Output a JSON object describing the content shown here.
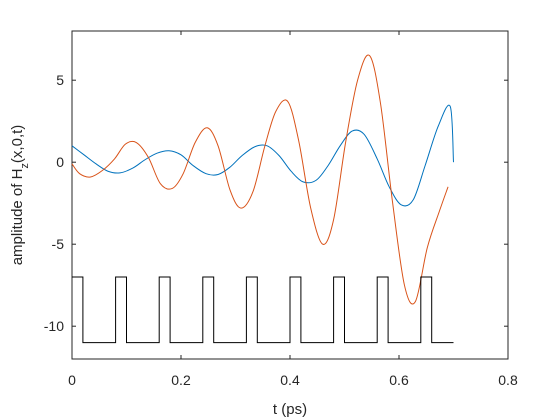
{
  "chart_data": {
    "type": "line",
    "title": "",
    "xlabel": "t (ps)",
    "ylabel": "amplitude of H_z(x,0,t)",
    "xlim": [
      0,
      0.8
    ],
    "ylim": [
      -12,
      8
    ],
    "x_ticks": [
      0,
      0.2,
      0.4,
      0.6,
      0.8
    ],
    "x_tick_labels": [
      "0",
      "0.2",
      "0.4",
      "0.6",
      "0.8"
    ],
    "y_ticks": [
      -10,
      -5,
      0,
      5
    ],
    "y_tick_labels": [
      "-10",
      "-5",
      "0",
      "5"
    ],
    "grid": false,
    "legend": "none",
    "series": [
      {
        "color": "#0072BD",
        "x": [
          0,
          0.022,
          0.044,
          0.066,
          0.088,
          0.112,
          0.134,
          0.156,
          0.178,
          0.2,
          0.222,
          0.246,
          0.268,
          0.29,
          0.312,
          0.336,
          0.358,
          0.38,
          0.402,
          0.424,
          0.448,
          0.47,
          0.492,
          0.514,
          0.536,
          0.56,
          0.582,
          0.604,
          0.626,
          0.648,
          0.672,
          0.694,
          0.7
        ],
        "y": [
          1.0,
          0.45,
          -0.1,
          -0.55,
          -0.65,
          -0.35,
          0.15,
          0.55,
          0.7,
          0.45,
          -0.2,
          -0.7,
          -0.75,
          -0.3,
          0.4,
          0.95,
          1.0,
          0.4,
          -0.55,
          -1.2,
          -1.1,
          -0.2,
          1.0,
          1.9,
          1.7,
          0.2,
          -1.5,
          -2.6,
          -2.3,
          -0.2,
          2.2,
          3.4,
          0.0
        ]
      },
      {
        "color": "#D95319",
        "x": [
          0,
          0.014,
          0.034,
          0.056,
          0.078,
          0.098,
          0.118,
          0.14,
          0.162,
          0.184,
          0.204,
          0.226,
          0.248,
          0.268,
          0.29,
          0.31,
          0.332,
          0.354,
          0.374,
          0.396,
          0.416,
          0.438,
          0.46,
          0.48,
          0.502,
          0.524,
          0.546,
          0.566,
          0.588,
          0.61,
          0.63,
          0.652,
          0.674,
          0.69
        ],
        "y": [
          -0.1,
          -0.7,
          -0.9,
          -0.5,
          0.2,
          1.1,
          1.2,
          0.3,
          -1.3,
          -1.6,
          -0.7,
          1.2,
          2.1,
          1.0,
          -1.7,
          -2.8,
          -1.8,
          1.0,
          3.1,
          3.7,
          1.3,
          -2.8,
          -5.0,
          -3.5,
          1.2,
          5.0,
          6.5,
          3.6,
          -2.4,
          -7.5,
          -8.5,
          -5.2,
          -3.0,
          -1.5
        ]
      },
      {
        "color": "#000000",
        "step": true,
        "x": [
          0,
          0.02,
          0.02,
          0.08,
          0.08,
          0.1,
          0.1,
          0.16,
          0.16,
          0.18,
          0.18,
          0.24,
          0.24,
          0.26,
          0.26,
          0.32,
          0.32,
          0.34,
          0.34,
          0.4,
          0.4,
          0.42,
          0.42,
          0.48,
          0.48,
          0.5,
          0.5,
          0.56,
          0.56,
          0.58,
          0.58,
          0.64,
          0.64,
          0.66,
          0.66,
          0.7
        ],
        "y": [
          -7,
          -7,
          -11,
          -11,
          -7,
          -7,
          -11,
          -11,
          -7,
          -7,
          -11,
          -11,
          -7,
          -7,
          -11,
          -11,
          -7,
          -7,
          -11,
          -11,
          -7,
          -7,
          -11,
          -11,
          -7,
          -7,
          -11,
          -11,
          -7,
          -7,
          -11,
          -11,
          -7,
          -7,
          -11,
          -11
        ]
      }
    ]
  }
}
